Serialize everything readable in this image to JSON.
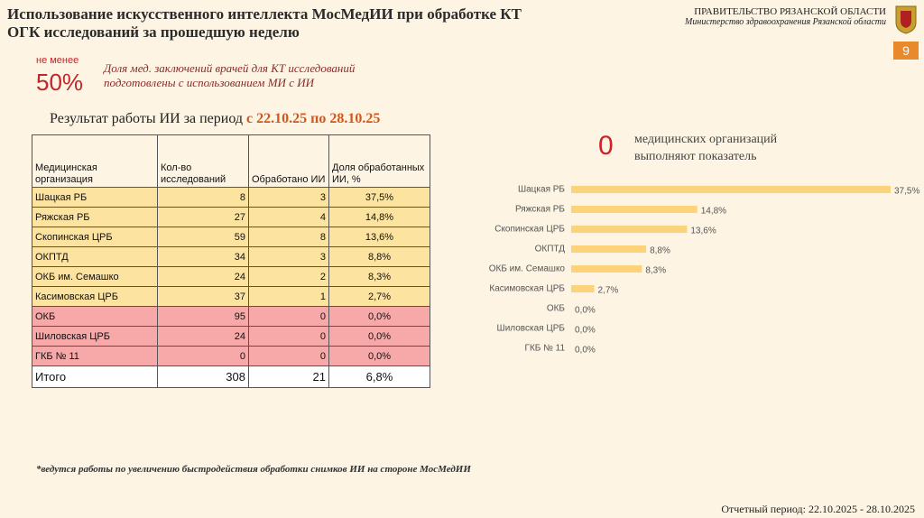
{
  "header": {
    "title": [
      "Использование искусственного интеллекта МосМедИИ при обработке КТ",
      "ОГК исследований за прошедшую неделю"
    ],
    "org": "ПРАВИТЕЛЬСТВО РЯЗАНСКОЙ ОБЛАСТИ",
    "ministry": "Министерство здравоохранения Рязанской области",
    "page": "9"
  },
  "target": {
    "prefix": "не менее",
    "value": "50%",
    "text": [
      "Доля мед. заключений врачей для КТ исследований",
      "подготовлены с использованием МИ с ИИ"
    ]
  },
  "period_heading": {
    "text": "Результат работы ИИ за период ",
    "period": "с 22.10.25 по 28.10.25"
  },
  "table": {
    "header": [
      "Медицинская организация",
      "Кол-во исследований",
      "Обработано ИИ",
      "Доля обработанных ИИ, %"
    ],
    "rows": [
      [
        "Шацкая РБ",
        8,
        3,
        "37,5%"
      ],
      [
        "Ряжская РБ",
        27,
        4,
        "14,8%"
      ],
      [
        "Скопинская ЦРБ",
        59,
        8,
        "13,6%"
      ],
      [
        "ОКПТД",
        34,
        3,
        "8,8%"
      ],
      [
        "ОКБ им. Семашко",
        24,
        2,
        "8,3%"
      ],
      [
        "Касимовская ЦРБ",
        37,
        1,
        "2,7%"
      ],
      [
        "ОКБ",
        95,
        0,
        "0,0%"
      ],
      [
        "Шиловская ЦРБ",
        24,
        0,
        "0,0%"
      ],
      [
        "ГКБ № 11",
        0,
        0,
        "0,0%"
      ]
    ],
    "total": [
      "Итого",
      308,
      21,
      "6,8%"
    ]
  },
  "summary": {
    "count": "0",
    "text": [
      "медицинских организаций",
      "выполняют показатель"
    ]
  },
  "chart_data": {
    "type": "bar",
    "orientation": "horizontal",
    "categories": [
      "Шацкая РБ",
      "Ряжская РБ",
      "Скопинская ЦРБ",
      "ОКПТД",
      "ОКБ им. Семашко",
      "Касимовская ЦРБ",
      "ОКБ",
      "Шиловская ЦРБ",
      "ГКБ № 11"
    ],
    "values": [
      37.5,
      14.8,
      13.6,
      8.8,
      8.3,
      2.7,
      0,
      0,
      0
    ],
    "value_labels": [
      "37,5%",
      "14,8%",
      "13,6%",
      "8,8%",
      "8,3%",
      "2,7%",
      "0,0%",
      "0,0%",
      "0,0%"
    ],
    "color": "#fcd27b",
    "xlim": [
      0,
      37.5
    ]
  },
  "footnote": "*ведутся работы по увеличению быстродействия обработки снимков ИИ на стороне МосМедИИ",
  "report_period": "Отчетный период: 22.10.2025 - 28.10.2025"
}
